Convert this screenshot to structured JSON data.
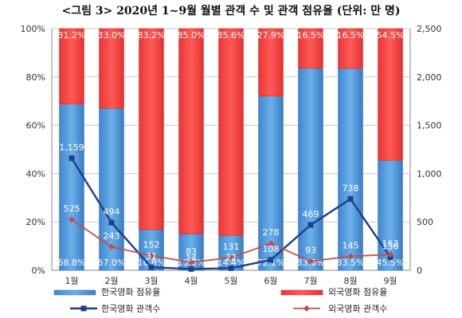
{
  "chart_data": {
    "title": "<그림 3> 2020년 1~9월 월별 관객 수 및 관객 점유율 (단위: 만 명)",
    "type": "bar",
    "stacked": true,
    "categories": [
      "1월",
      "2월",
      "3월",
      "4월",
      "5월",
      "6월",
      "7월",
      "8월",
      "9월"
    ],
    "y_left": {
      "ticks": [
        "0%",
        "20%",
        "40%",
        "60%",
        "80%",
        "100%"
      ],
      "range": [
        0,
        100
      ]
    },
    "y_right": {
      "ticks": [
        "0",
        "500",
        "1,000",
        "1,500",
        "2,000",
        "2,500"
      ],
      "range": [
        0,
        2500
      ]
    },
    "series": [
      {
        "name": "한국영화 점유율",
        "type": "bar",
        "axis": "left",
        "color": "#4a90d2",
        "values": [
          68.8,
          67.0,
          16.8,
          15.0,
          14.4,
          72.1,
          83.6,
          83.5,
          45.5
        ],
        "labels": [
          "68.8%",
          "67.0%",
          "16.8%",
          "15.0%",
          "14.4%",
          "72.1%",
          "83.6%",
          "83.5%",
          "45.5%"
        ]
      },
      {
        "name": "외국영화 점유율",
        "type": "bar",
        "axis": "left",
        "color": "#f04040",
        "values": [
          31.2,
          33.0,
          83.2,
          85.0,
          85.6,
          27.9,
          16.5,
          16.5,
          54.5
        ],
        "labels": [
          "31.2%",
          "33.0%",
          "83.2%",
          "85.0%",
          "85.6%",
          "27.9%",
          "16.5%",
          "16.5%",
          "54.5%"
        ]
      },
      {
        "name": "한국영화 관객수",
        "type": "line",
        "axis": "right",
        "color": "#1f3f8a",
        "values": [
          1159,
          494,
          31,
          14,
          22,
          108,
          469,
          738,
          136
        ],
        "labels": [
          "1,159",
          "494",
          "31",
          "14",
          "22",
          "108",
          "469",
          "738",
          "136"
        ]
      },
      {
        "name": "외국영화 관객수",
        "type": "line",
        "axis": "right",
        "color": "#c0504d",
        "values": [
          525,
          243,
          152,
          83,
          131,
          278,
          93,
          145,
          163
        ],
        "labels": [
          "525",
          "243",
          "152",
          "83",
          "131",
          "278",
          "93",
          "145",
          "163"
        ]
      }
    ],
    "legend": {
      "placement": "bottom"
    }
  }
}
